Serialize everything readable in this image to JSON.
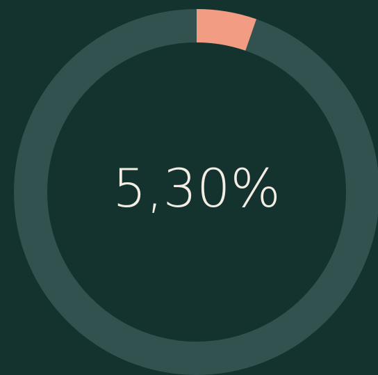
{
  "chart_data": {
    "type": "donut",
    "values": [
      5.3
    ],
    "value_labels": [
      "5,30%"
    ],
    "color": "#f29c84",
    "track_color": "#31524f",
    "ylim": [
      0,
      100
    ]
  }
}
